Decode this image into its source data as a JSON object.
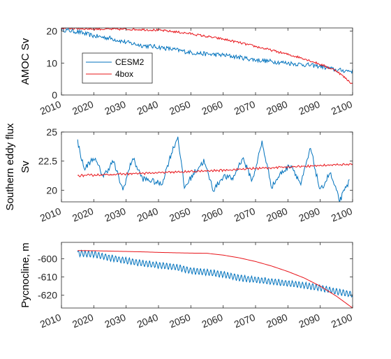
{
  "colors": {
    "cesm2": "#0072BD",
    "box4": "#E8141A",
    "axis": "#262626"
  },
  "chart_data": [
    {
      "type": "line",
      "ylabel": "AMOC Sv",
      "xlim": [
        2010,
        2100
      ],
      "ylim": [
        0,
        21
      ],
      "xticks": [
        2010,
        2020,
        2030,
        2040,
        2050,
        2060,
        2070,
        2080,
        2090,
        2100
      ],
      "yticks": [
        0,
        10,
        20
      ],
      "legend": {
        "placement": "inside-left",
        "entries": [
          "CESM2",
          "4box"
        ]
      },
      "series": [
        {
          "name": "CESM2",
          "color": "#0072BD",
          "x": [
            2010,
            2015,
            2020,
            2025,
            2030,
            2035,
            2040,
            2045,
            2050,
            2055,
            2060,
            2065,
            2070,
            2075,
            2080,
            2085,
            2090,
            2095,
            2100
          ],
          "y": [
            20.5,
            19.8,
            18.5,
            17.8,
            16.5,
            15.5,
            15.0,
            14.2,
            13.3,
            12.8,
            12.5,
            11.8,
            11.0,
            10.5,
            10.0,
            9.5,
            9.0,
            7.8,
            7.5
          ]
        },
        {
          "name": "4box",
          "color": "#E8141A",
          "x": [
            2010,
            2015,
            2020,
            2025,
            2030,
            2035,
            2040,
            2045,
            2050,
            2055,
            2060,
            2065,
            2070,
            2075,
            2080,
            2085,
            2090,
            2095,
            2100
          ],
          "y": [
            21.0,
            20.8,
            20.7,
            20.6,
            20.6,
            20.5,
            20.3,
            19.8,
            19.2,
            18.3,
            17.5,
            16.4,
            15.2,
            14.0,
            12.7,
            11.4,
            9.6,
            7.6,
            3.4
          ]
        }
      ]
    },
    {
      "type": "line",
      "ylabel": "Southern eddy flux Sv",
      "ylabel_lines": [
        "Southern eddy flux",
        "Sv"
      ],
      "xlim": [
        2010,
        2100
      ],
      "ylim": [
        19,
        25
      ],
      "xticks": [
        2010,
        2020,
        2030,
        2040,
        2050,
        2060,
        2070,
        2080,
        2090,
        2100
      ],
      "yticks": [
        20,
        22.5,
        25
      ],
      "series": [
        {
          "name": "CESM2",
          "color": "#0072BD",
          "x": [
            2015,
            2017,
            2020,
            2023,
            2026,
            2029,
            2032,
            2035,
            2038,
            2041,
            2044,
            2046,
            2048,
            2051,
            2054,
            2057,
            2060,
            2063,
            2066,
            2069,
            2072,
            2075,
            2078,
            2081,
            2084,
            2087,
            2090,
            2093,
            2096,
            2099
          ],
          "y": [
            24.2,
            21.8,
            22.8,
            21.2,
            22.5,
            20.0,
            22.8,
            21.0,
            20.8,
            20.5,
            23.2,
            24.6,
            20.2,
            21.5,
            22.5,
            20.0,
            21.2,
            21.0,
            22.8,
            20.8,
            24.1,
            20.3,
            21.5,
            22.2,
            20.5,
            23.6,
            19.9,
            21.5,
            19.1,
            20.8
          ]
        },
        {
          "name": "4box",
          "color": "#E8141A",
          "x": [
            2015,
            2020,
            2025,
            2030,
            2035,
            2040,
            2045,
            2050,
            2055,
            2060,
            2065,
            2070,
            2075,
            2080,
            2085,
            2090,
            2095,
            2100
          ],
          "y": [
            21.25,
            21.3,
            21.35,
            21.4,
            21.45,
            21.5,
            21.55,
            21.6,
            21.65,
            21.72,
            21.8,
            21.87,
            21.93,
            22.0,
            22.06,
            22.12,
            22.18,
            22.25
          ]
        }
      ]
    },
    {
      "type": "line",
      "ylabel": "Pycnocline, m",
      "xlim": [
        2010,
        2100
      ],
      "ylim": [
        -627,
        -591
      ],
      "xticks": [
        2010,
        2020,
        2030,
        2040,
        2050,
        2060,
        2070,
        2080,
        2090,
        2100
      ],
      "yticks": [
        -600,
        -610,
        -620
      ],
      "series": [
        {
          "name": "CESM2",
          "color": "#0072BD",
          "x": [
            2015,
            2020,
            2025,
            2030,
            2035,
            2040,
            2045,
            2050,
            2055,
            2060,
            2065,
            2070,
            2075,
            2080,
            2085,
            2090,
            2095,
            2100
          ],
          "y": [
            -597.0,
            -597.5,
            -599.5,
            -601.0,
            -602.5,
            -603.5,
            -604.5,
            -606.5,
            -607.5,
            -608.5,
            -610.5,
            -611.5,
            -612.5,
            -613.5,
            -614.5,
            -616.0,
            -618.0,
            -619.5
          ]
        },
        {
          "name": "4box",
          "color": "#E8141A",
          "x": [
            2015,
            2020,
            2025,
            2030,
            2035,
            2040,
            2045,
            2050,
            2055,
            2060,
            2065,
            2070,
            2075,
            2080,
            2085,
            2090,
            2095,
            2100
          ],
          "y": [
            -595.5,
            -595.6,
            -595.8,
            -596.0,
            -596.2,
            -596.5,
            -596.7,
            -596.9,
            -597.0,
            -598.0,
            -599.5,
            -601.5,
            -604.0,
            -607.0,
            -610.5,
            -615.0,
            -620.5,
            -627.0
          ]
        }
      ]
    }
  ]
}
